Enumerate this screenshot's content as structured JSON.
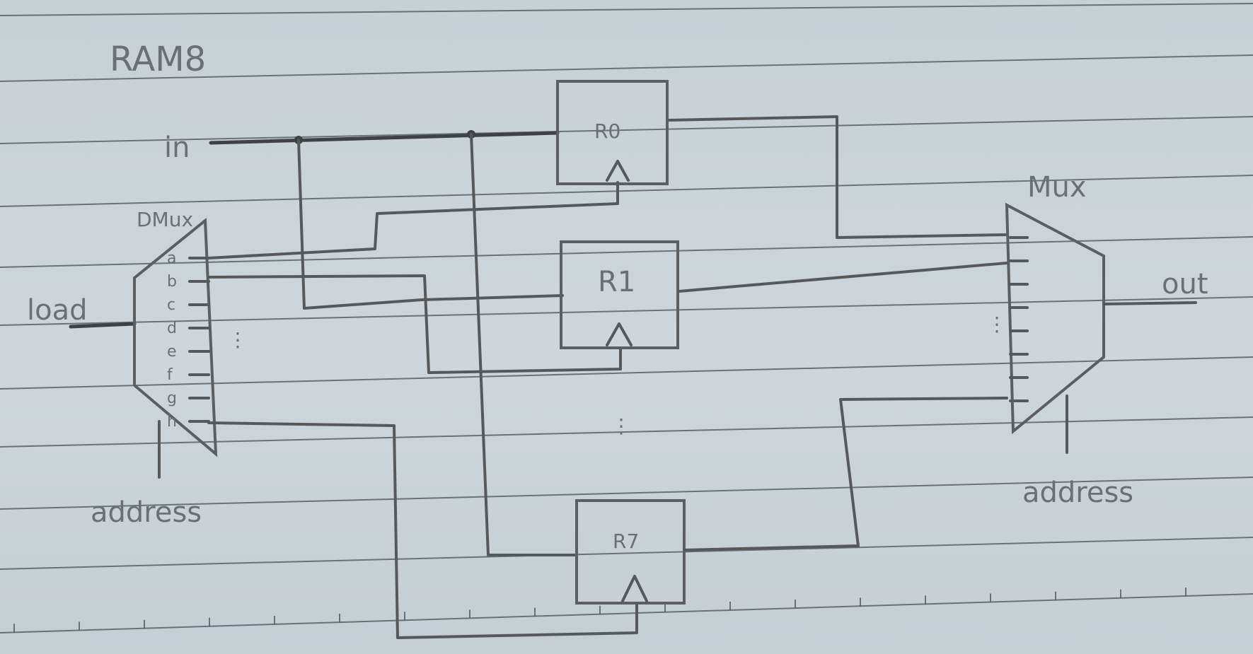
{
  "title": "RAM8",
  "inputs": {
    "in": "in",
    "load": "load"
  },
  "output": "out",
  "dmux": {
    "label": "DMux",
    "address": "address",
    "pins": [
      "a",
      "b",
      "c",
      "d",
      "e",
      "f",
      "g",
      "h"
    ]
  },
  "mux": {
    "label": "Mux",
    "address": "address"
  },
  "registers": [
    "R0",
    "R1",
    "R7"
  ],
  "ellipsis": "⋮"
}
